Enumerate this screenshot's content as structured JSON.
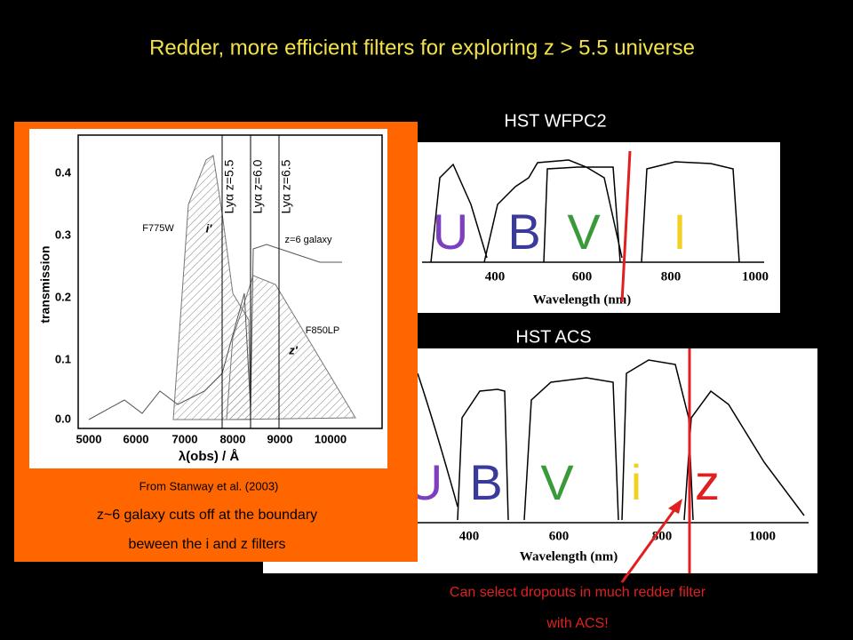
{
  "title": "Redder, more efficient filters for exploring z > 5.5 universe",
  "wfpc2": {
    "label": "HST WFPC2",
    "filters": [
      "U",
      "B",
      "V",
      "I"
    ],
    "xticks": [
      "400",
      "600",
      "800",
      "1000"
    ],
    "xlabel": "Wavelength (nm)"
  },
  "acs": {
    "label": "HST ACS",
    "filters": [
      "U",
      "B",
      "V",
      "i",
      "z"
    ],
    "xticks": [
      "400",
      "600",
      "800",
      "1000"
    ],
    "xlabel": "Wavelength (nm)"
  },
  "inset": {
    "yticks": [
      "0.4",
      "0.3",
      "0.2",
      "0.1",
      "0.0"
    ],
    "xticks": [
      "5000",
      "6000",
      "7000",
      "8000",
      "9000",
      "10000"
    ],
    "ylabel": "transmission",
    "xlabel": "λ(obs) / Å",
    "annotations": [
      "F775W",
      "i'",
      "Lyα z=5.5",
      "Lyα z=6.0",
      "Lyα z=6.5",
      "z=6 galaxy",
      "F850LP",
      "z'"
    ]
  },
  "caption": {
    "source": "From Stanway et al. (2003)",
    "lines": [
      "z~6 galaxy cuts off at the boundary",
      "beween the i and z filters"
    ]
  },
  "note": {
    "lines": [
      "Can select dropouts in much redder filter",
      "with ACS!"
    ]
  }
}
